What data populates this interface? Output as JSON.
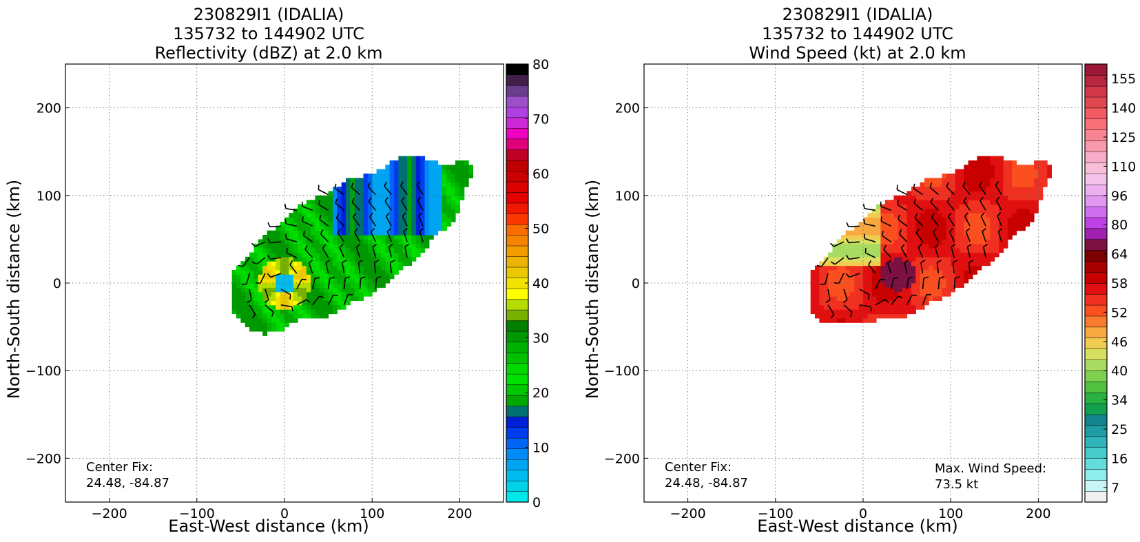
{
  "chart_data": [
    {
      "type": "heatmap",
      "title_lines": [
        "230829I1 (IDALIA)",
        "135732 to 144902 UTC",
        "Reflectivity (dBZ) at 2.0 km"
      ],
      "xlabel": "East-West distance (km)",
      "ylabel": "North-South distance (km)",
      "xlim": [
        -250,
        250
      ],
      "ylim": [
        -250,
        250
      ],
      "xticks": [
        -200,
        -100,
        0,
        100,
        200
      ],
      "yticks": [
        -200,
        -100,
        0,
        100,
        200
      ],
      "grid": true,
      "annotations": [
        {
          "text": "Center Fix:",
          "position": "bottom-left"
        },
        {
          "text": "24.48, -84.87",
          "position": "bottom-left"
        }
      ],
      "colorbar": {
        "min": 0,
        "max": 80,
        "tick_labels": [
          0,
          10,
          20,
          30,
          40,
          50,
          60,
          70,
          80
        ],
        "colors": [
          "#00e8e8",
          "#00d2ea",
          "#00bbee",
          "#00a4f0",
          "#008cf4",
          "#0064f4",
          "#003cf0",
          "#0020d8",
          "#007070",
          "#00a800",
          "#00c800",
          "#00e000",
          "#00d800",
          "#00c000",
          "#00b000",
          "#009800",
          "#008000",
          "#78b000",
          "#b4dc00",
          "#ffff00",
          "#f2e200",
          "#ecc800",
          "#ecb400",
          "#f29c00",
          "#f48400",
          "#f86c00",
          "#fc3800",
          "#f01800",
          "#e40000",
          "#dc0000",
          "#cc0000",
          "#c00000",
          "#c00024",
          "#e0007a",
          "#f000c0",
          "#cc28d8",
          "#b040e0",
          "#9c50c8",
          "#6c3c8c",
          "#402048",
          "#000000"
        ]
      },
      "storm": {
        "center": [
          0,
          0
        ],
        "region_value_dbz": {
          "eye": 5,
          "eyewall": 38,
          "core": 25,
          "northeast_band": 12,
          "outer_band": 22
        }
      }
    },
    {
      "type": "heatmap",
      "title_lines": [
        "230829I1 (IDALIA)",
        "135732 to 144902 UTC",
        "Wind Speed (kt) at 2.0 km"
      ],
      "xlabel": "East-West distance (km)",
      "ylabel": "North-South distance (km)",
      "xlim": [
        -250,
        250
      ],
      "ylim": [
        -250,
        250
      ],
      "xticks": [
        -200,
        -100,
        0,
        100,
        200
      ],
      "yticks": [
        -200,
        -100,
        0,
        100,
        200
      ],
      "grid": true,
      "annotations": [
        {
          "text": "Center Fix:",
          "position": "bottom-left"
        },
        {
          "text": "24.48, -84.87",
          "position": "bottom-left"
        },
        {
          "text": "Max. Wind Speed:",
          "position": "bottom-right"
        },
        {
          "text": "73.5 kt",
          "position": "bottom-right"
        }
      ],
      "max_wind_kt": 73.5,
      "colorbar": {
        "tick_labels": [
          7,
          16,
          25,
          34,
          40,
          46,
          52,
          58,
          64,
          80,
          96,
          110,
          125,
          140,
          155
        ],
        "colors": [
          "#f0f0f0",
          "#c8f6f6",
          "#8eecec",
          "#62dcdc",
          "#46cccc",
          "#30b4b8",
          "#209ca4",
          "#14848c",
          "#10a050",
          "#28b040",
          "#50c040",
          "#80d050",
          "#a8dc60",
          "#d8e060",
          "#f0cc50",
          "#f8a840",
          "#fa7a30",
          "#fa5020",
          "#f03020",
          "#e01010",
          "#c80000",
          "#a80000",
          "#7c0000",
          "#7c1040",
          "#a020b0",
          "#c040e8",
          "#d070f0",
          "#e098f0",
          "#ecb0f0",
          "#f4c4ec",
          "#f8c0d8",
          "#f8acc8",
          "#f898ac",
          "#f88494",
          "#f87078",
          "#f05a60",
          "#e04850",
          "#d03848",
          "#b82840",
          "#9c1838"
        ]
      },
      "storm": {
        "center": [
          0,
          0
        ],
        "region_value_kt": {
          "core_max": 73.5,
          "northwest_band": 45,
          "main_shield": 56
        }
      }
    }
  ]
}
